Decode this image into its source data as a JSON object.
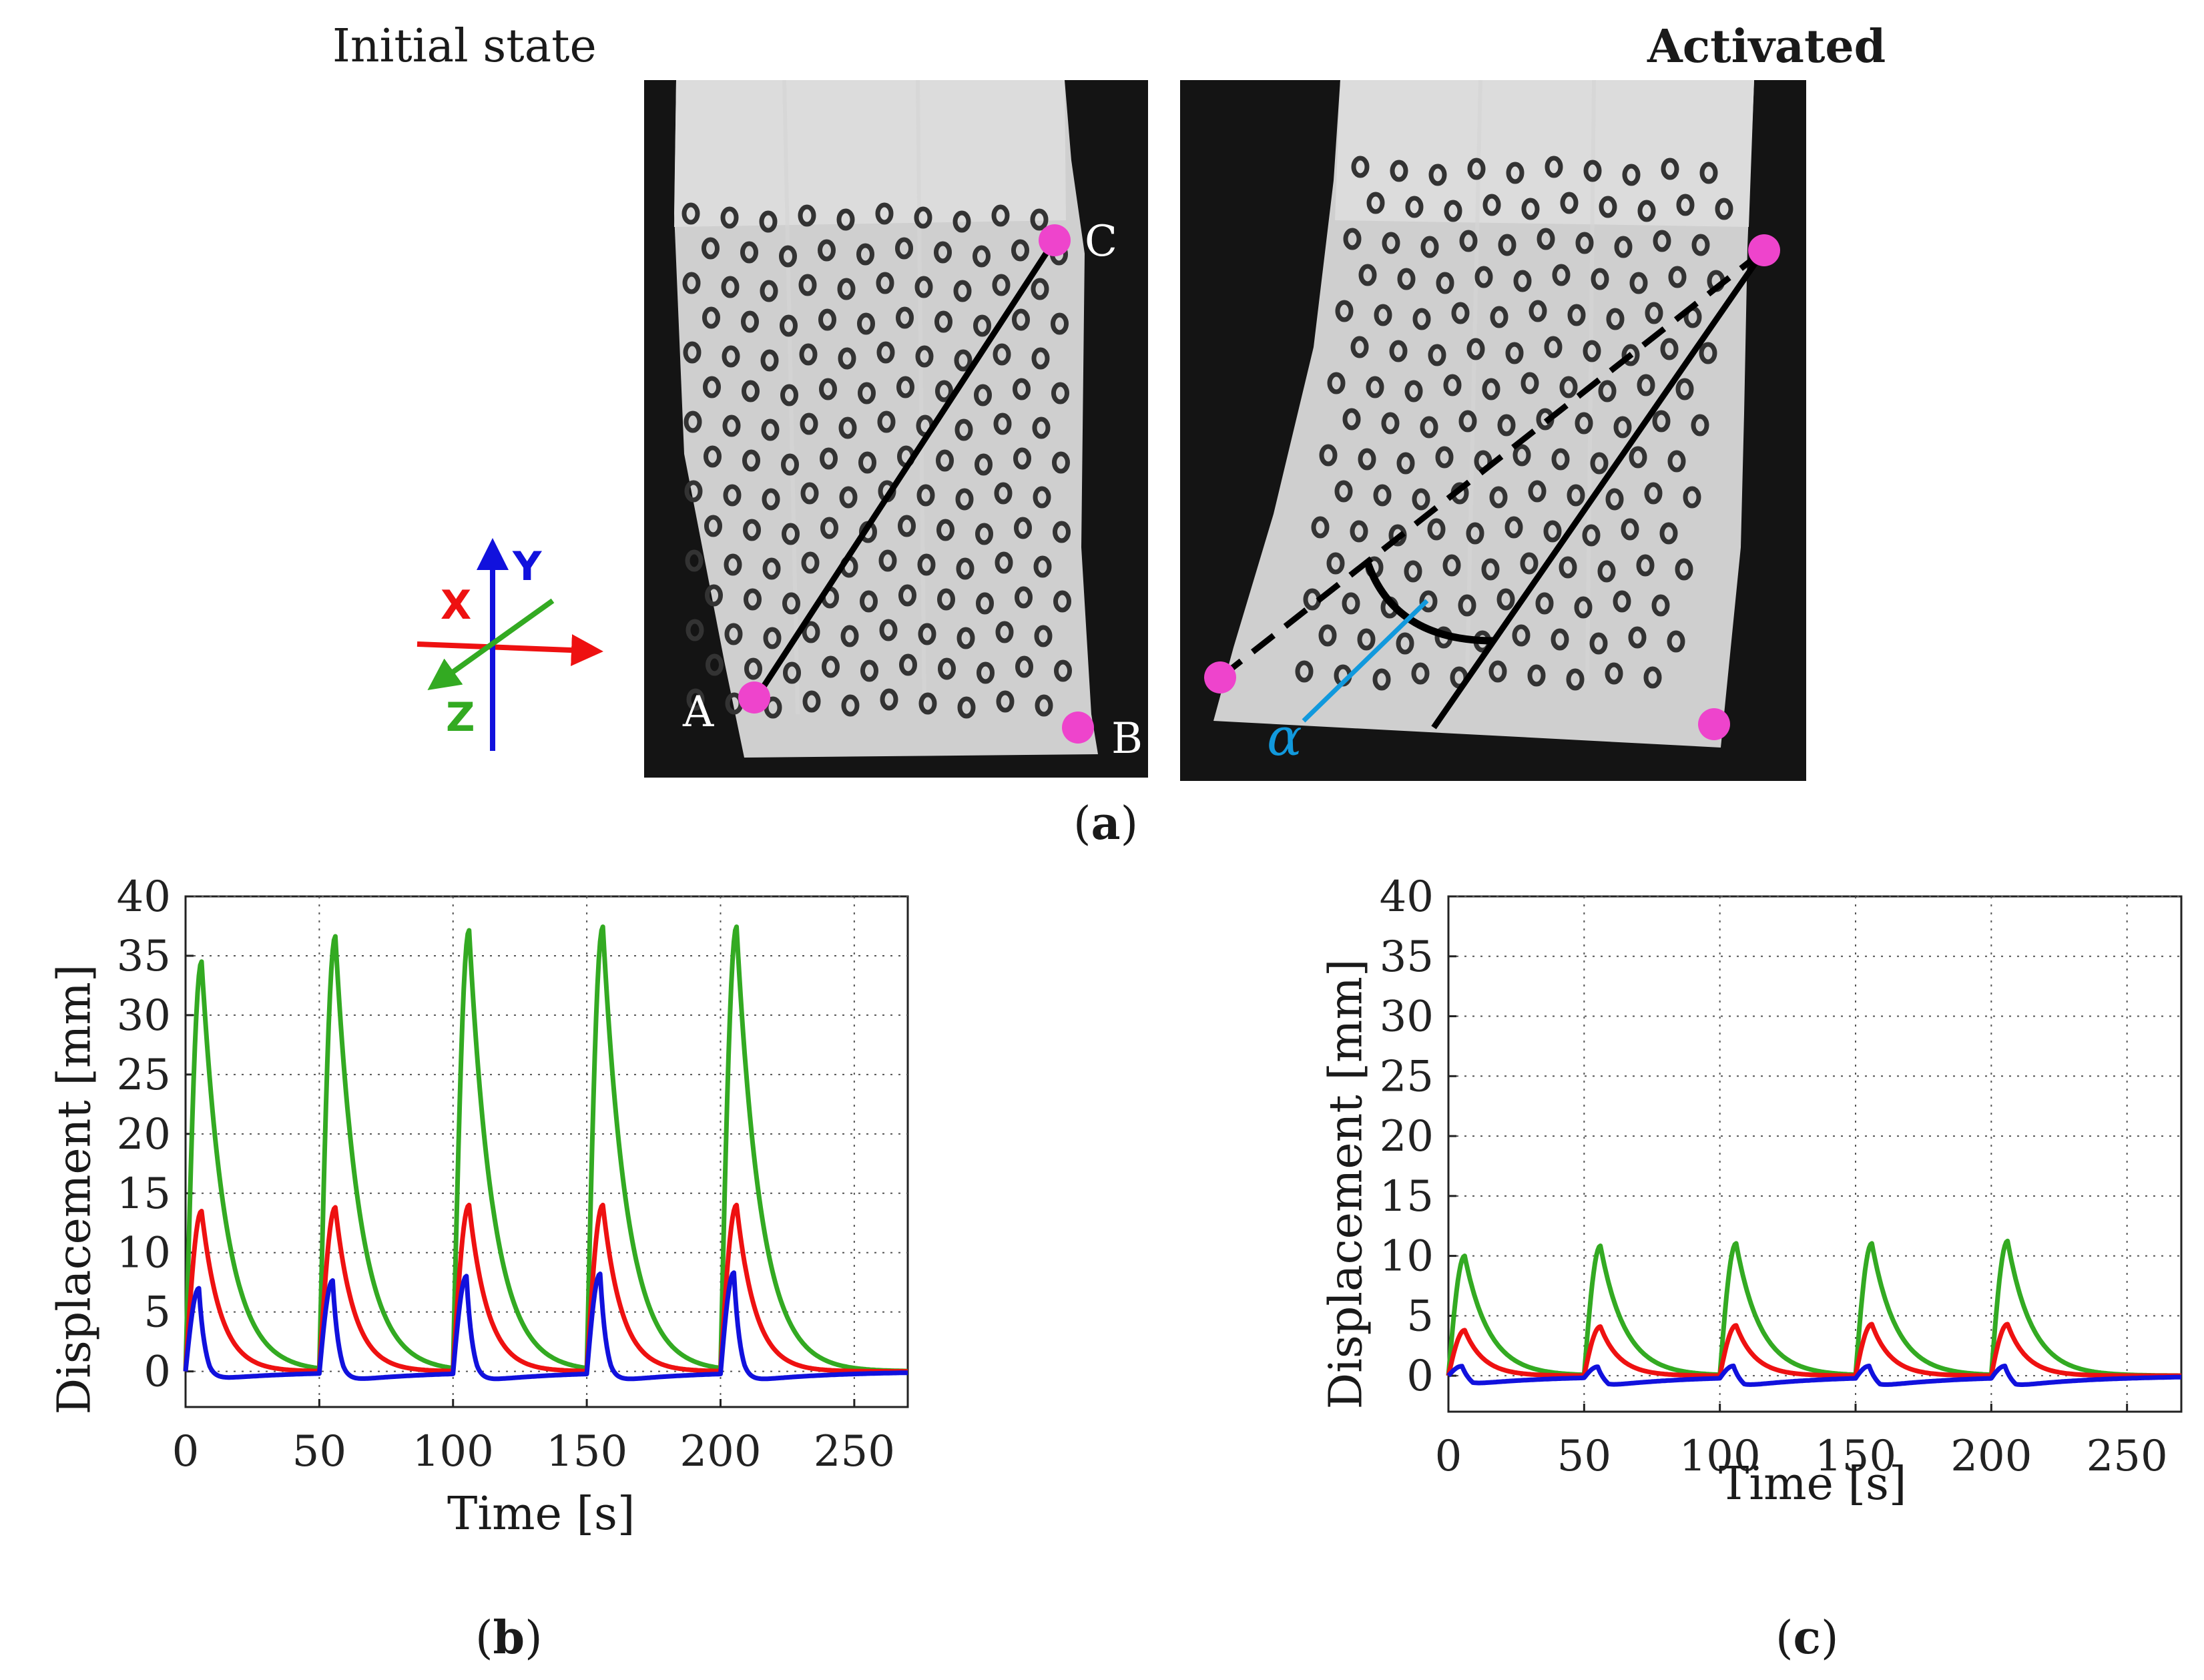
{
  "panel_a": {
    "left_title": "Initial state",
    "right_title": "Activated",
    "caption": {
      "open": "(",
      "letter": "a",
      "close": ")"
    },
    "points": {
      "a": "A",
      "b": "B",
      "c": "C"
    },
    "angle_label": "α",
    "axes": {
      "x": "X",
      "y": "Y",
      "z": "Z"
    },
    "colors": {
      "marker": "#ee44cc",
      "x": "#ee1111",
      "y": "#1111dd",
      "z": "#33aa22",
      "alpha": "#1199dd"
    }
  },
  "chart_data": [
    {
      "type": "line",
      "panel": "b",
      "caption": {
        "open": "(",
        "letter": "b",
        "close": ")"
      },
      "xlabel": "Time [s]",
      "ylabel": "Displacement [mm]",
      "xlim": [
        0,
        270
      ],
      "ylim": [
        -3,
        40
      ],
      "xticks": [
        0,
        50,
        100,
        150,
        200,
        250
      ],
      "yticks": [
        0,
        5,
        10,
        15,
        20,
        25,
        30,
        35,
        40
      ],
      "grid": true,
      "pulse_starts": [
        0,
        50,
        100,
        150,
        200
      ],
      "series": [
        {
          "name": "X",
          "color": "#ee1111",
          "peaks": [
            13.5,
            13.8,
            14.0,
            14.0,
            14.0
          ]
        },
        {
          "name": "Y",
          "color": "#1111dd",
          "peaks": [
            7.0,
            7.8,
            8.2,
            8.4,
            8.5
          ]
        },
        {
          "name": "Z",
          "color": "#33aa22",
          "peaks": [
            34.5,
            36.5,
            37.0,
            37.3,
            37.3
          ]
        }
      ]
    },
    {
      "type": "line",
      "panel": "c",
      "caption": {
        "open": "(",
        "letter": "c",
        "close": ")"
      },
      "xlabel": "Time [s]",
      "ylabel": "Displacement [mm]",
      "xlim": [
        0,
        270
      ],
      "ylim": [
        -3,
        40
      ],
      "xticks": [
        0,
        50,
        100,
        150,
        200,
        250
      ],
      "yticks": [
        0,
        5,
        10,
        15,
        20,
        25,
        30,
        35,
        40
      ],
      "grid": true,
      "pulse_starts": [
        0,
        50,
        100,
        150,
        200
      ],
      "series": [
        {
          "name": "X",
          "color": "#ee1111",
          "peaks": [
            3.8,
            4.1,
            4.2,
            4.3,
            4.3
          ]
        },
        {
          "name": "Y",
          "color": "#1111dd",
          "peaks": [
            0.8,
            0.9,
            1.0,
            1.0,
            1.0
          ]
        },
        {
          "name": "Z",
          "color": "#33aa22",
          "peaks": [
            10.0,
            10.8,
            11.0,
            11.0,
            11.2
          ]
        }
      ]
    }
  ]
}
